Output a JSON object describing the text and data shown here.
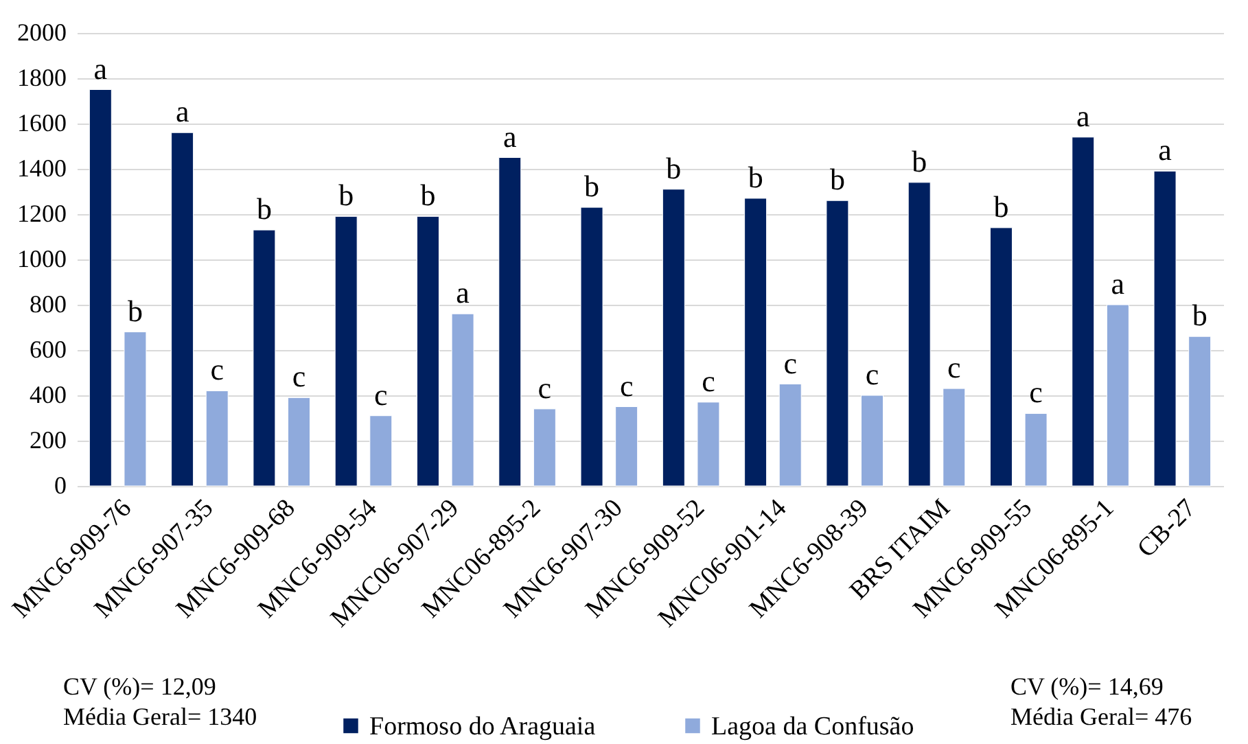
{
  "chart_data": {
    "type": "bar",
    "categories": [
      "MNC6-909-76",
      "MNC6-907-35",
      "MNC6-909-68",
      "MNC6-909-54",
      "MNC06-907-29",
      "MNC06-895-2",
      "MNC6-907-30",
      "MNC6-909-52",
      "MNC06-901-14",
      "MNC6-908-39",
      "BRS ITAIM",
      "MNC6-909-55",
      "MNC06-895-1",
      "CB-27"
    ],
    "series": [
      {
        "name": "Formoso do Araguaia",
        "color": "#002060",
        "values": [
          1750,
          1560,
          1130,
          1190,
          1190,
          1450,
          1230,
          1310,
          1270,
          1260,
          1340,
          1140,
          1540,
          1390
        ],
        "value_labels": [
          "a",
          "a",
          "b",
          "b",
          "b",
          "a",
          "b",
          "b",
          "b",
          "b",
          "b",
          "b",
          "a",
          "a"
        ]
      },
      {
        "name": "Lagoa da Confusão",
        "color": "#8faadc",
        "values": [
          680,
          420,
          390,
          310,
          760,
          340,
          350,
          370,
          450,
          400,
          430,
          320,
          800,
          660
        ],
        "value_labels": [
          "b",
          "c",
          "c",
          "c",
          "a",
          "c",
          "c",
          "c",
          "c",
          "c",
          "c",
          "c",
          "a",
          "b"
        ]
      }
    ],
    "ylim": [
      0,
      2000
    ],
    "yticks": [
      0,
      200,
      400,
      600,
      800,
      1000,
      1200,
      1400,
      1600,
      1800,
      2000
    ],
    "grid": "y",
    "legend": "bottom",
    "annotations": [
      "CV (%)= 12,09",
      "Média Geral= 1340",
      "CV (%)= 14,69",
      "Média Geral= 476"
    ]
  }
}
